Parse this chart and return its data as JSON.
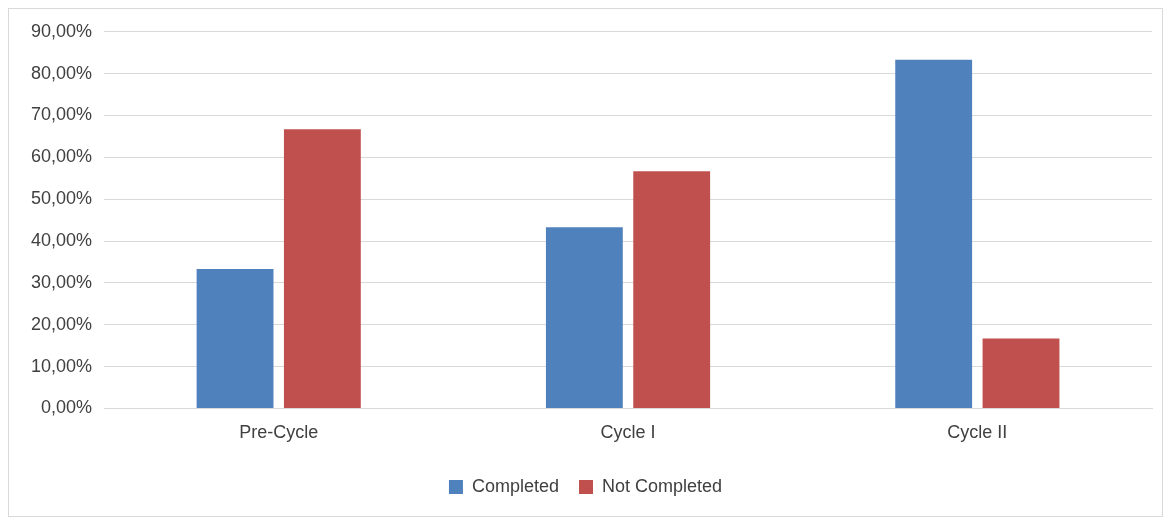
{
  "chart_data": {
    "type": "bar",
    "categories": [
      "Pre-Cycle",
      "Cycle I",
      "Cycle II"
    ],
    "series": [
      {
        "name": "Completed",
        "color": "#4f81bd",
        "values": [
          33.3,
          43.3,
          83.3
        ]
      },
      {
        "name": "Not Completed",
        "color": "#c0504d",
        "values": [
          66.7,
          56.7,
          16.7
        ]
      }
    ],
    "ylim": [
      0,
      90
    ],
    "yticks": [
      {
        "value": 0,
        "label": "0,00%"
      },
      {
        "value": 10,
        "label": "10,00%"
      },
      {
        "value": 20,
        "label": "20,00%"
      },
      {
        "value": 30,
        "label": "30,00%"
      },
      {
        "value": 40,
        "label": "40,00%"
      },
      {
        "value": 50,
        "label": "50,00%"
      },
      {
        "value": 60,
        "label": "60,00%"
      },
      {
        "value": 70,
        "label": "70,00%"
      },
      {
        "value": 80,
        "label": "80,00%"
      },
      {
        "value": 90,
        "label": "90,00%"
      }
    ],
    "grid": "y",
    "legend": "bottom"
  }
}
